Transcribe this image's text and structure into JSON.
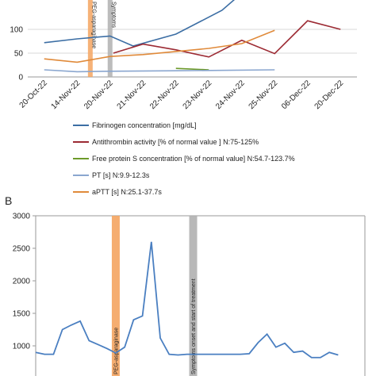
{
  "chart_data": [
    {
      "type": "line",
      "panel": "",
      "yticks": [
        0,
        50,
        100
      ],
      "ylim": [
        0,
        160
      ],
      "categories": [
        "20-Oct-22",
        "14-Nov-22",
        "20-Nov-22",
        "21-Nov-22",
        "22-Nov-22",
        "23-Nov-22",
        "24-Nov-22",
        "25-Nov-22",
        "06-Dec-22",
        "20-Dec-22"
      ],
      "grid": true,
      "bands": [
        {
          "label": "PEG-asparaginase",
          "x": 1.4,
          "color": "#f4a460"
        },
        {
          "label": "Symptoms",
          "x": 2.0,
          "color": "#b0b0b0"
        }
      ],
      "series": [
        {
          "name": "Fibrinogen concentration [mg/dL]",
          "color": "#3c6ea4",
          "points": [
            [
              0,
              72
            ],
            [
              1,
              80
            ],
            [
              2,
              86
            ],
            [
              2.7,
              65
            ],
            [
              4,
              90
            ],
            [
              5.4,
              140
            ],
            [
              5.9,
              170
            ]
          ]
        },
        {
          "name": "Antithrombin activity [% of normal value ] N:75-125%",
          "color": "#9c2a33",
          "points": [
            [
              2.1,
              50
            ],
            [
              3,
              69
            ],
            [
              4,
              57
            ],
            [
              5,
              42
            ],
            [
              6,
              77
            ],
            [
              7,
              49
            ],
            [
              8,
              118
            ],
            [
              9,
              100
            ]
          ]
        },
        {
          "name": "Free protein S concentration [% of normal value] N:54.7-123.7%",
          "color": "#6d9a2a",
          "points": [
            [
              4,
              18
            ],
            [
              5,
              15
            ]
          ]
        },
        {
          "name": "PT [s] N:9.9-12.3s",
          "color": "#8aa6cf",
          "points": [
            [
              0,
              15
            ],
            [
              1,
              11
            ],
            [
              2,
              12
            ],
            [
              4,
              13
            ],
            [
              7,
              15
            ]
          ]
        },
        {
          "name": "aPTT [s] N:25.1-37.7s",
          "color": "#e08a3a",
          "points": [
            [
              0,
              38
            ],
            [
              1,
              31
            ],
            [
              2,
              43
            ],
            [
              3,
              47
            ],
            [
              5,
              60
            ],
            [
              6,
              70
            ],
            [
              7,
              98
            ]
          ]
        }
      ]
    },
    {
      "type": "line",
      "panel": "B",
      "yticks": [
        1000,
        1500,
        2000,
        2500,
        3000
      ],
      "ylim": [
        870,
        3000
      ],
      "xlim": [
        0,
        37
      ],
      "grid": false,
      "bands": [
        {
          "label": "PEG-asparaginase",
          "x": 9,
          "color": "#f4a460"
        },
        {
          "label": "Symptoms onset and start of treatment",
          "x": 17.7,
          "color": "#b0b0b0"
        }
      ],
      "series": [
        {
          "name": "",
          "color": "#4a7fc1",
          "points": [
            [
              0,
              900
            ],
            [
              1,
              870
            ],
            [
              2,
              870
            ],
            [
              3,
              1250
            ],
            [
              4,
              1320
            ],
            [
              5,
              1380
            ],
            [
              6,
              1080
            ],
            [
              7,
              1020
            ],
            [
              8,
              960
            ],
            [
              9,
              890
            ],
            [
              10,
              980
            ],
            [
              11,
              1400
            ],
            [
              12,
              1460
            ],
            [
              13,
              2600
            ],
            [
              14,
              1120
            ],
            [
              15,
              870
            ],
            [
              16,
              860
            ],
            [
              17,
              870
            ],
            [
              18,
              870
            ],
            [
              19,
              870
            ],
            [
              20,
              870
            ],
            [
              21,
              870
            ],
            [
              22,
              870
            ],
            [
              23,
              870
            ],
            [
              24,
              880
            ],
            [
              25,
              1050
            ],
            [
              26,
              1180
            ],
            [
              27,
              980
            ],
            [
              28,
              1040
            ],
            [
              29,
              900
            ],
            [
              30,
              920
            ],
            [
              31,
              820
            ],
            [
              32,
              820
            ],
            [
              33,
              900
            ],
            [
              34,
              860
            ]
          ]
        }
      ]
    }
  ]
}
